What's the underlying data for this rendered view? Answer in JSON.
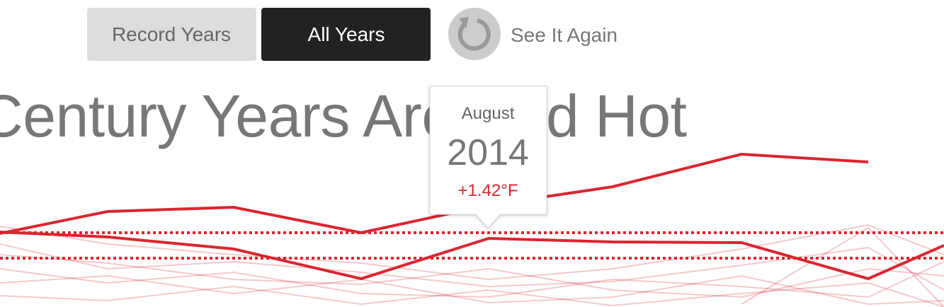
{
  "buttons": [
    "Record Years",
    "All Years"
  ],
  "replay": "See It Again",
  "title": "Century Years Are Red Hot",
  "tooltip": {
    "month": "August",
    "year": "2014",
    "value": "+1.42°F"
  }
}
